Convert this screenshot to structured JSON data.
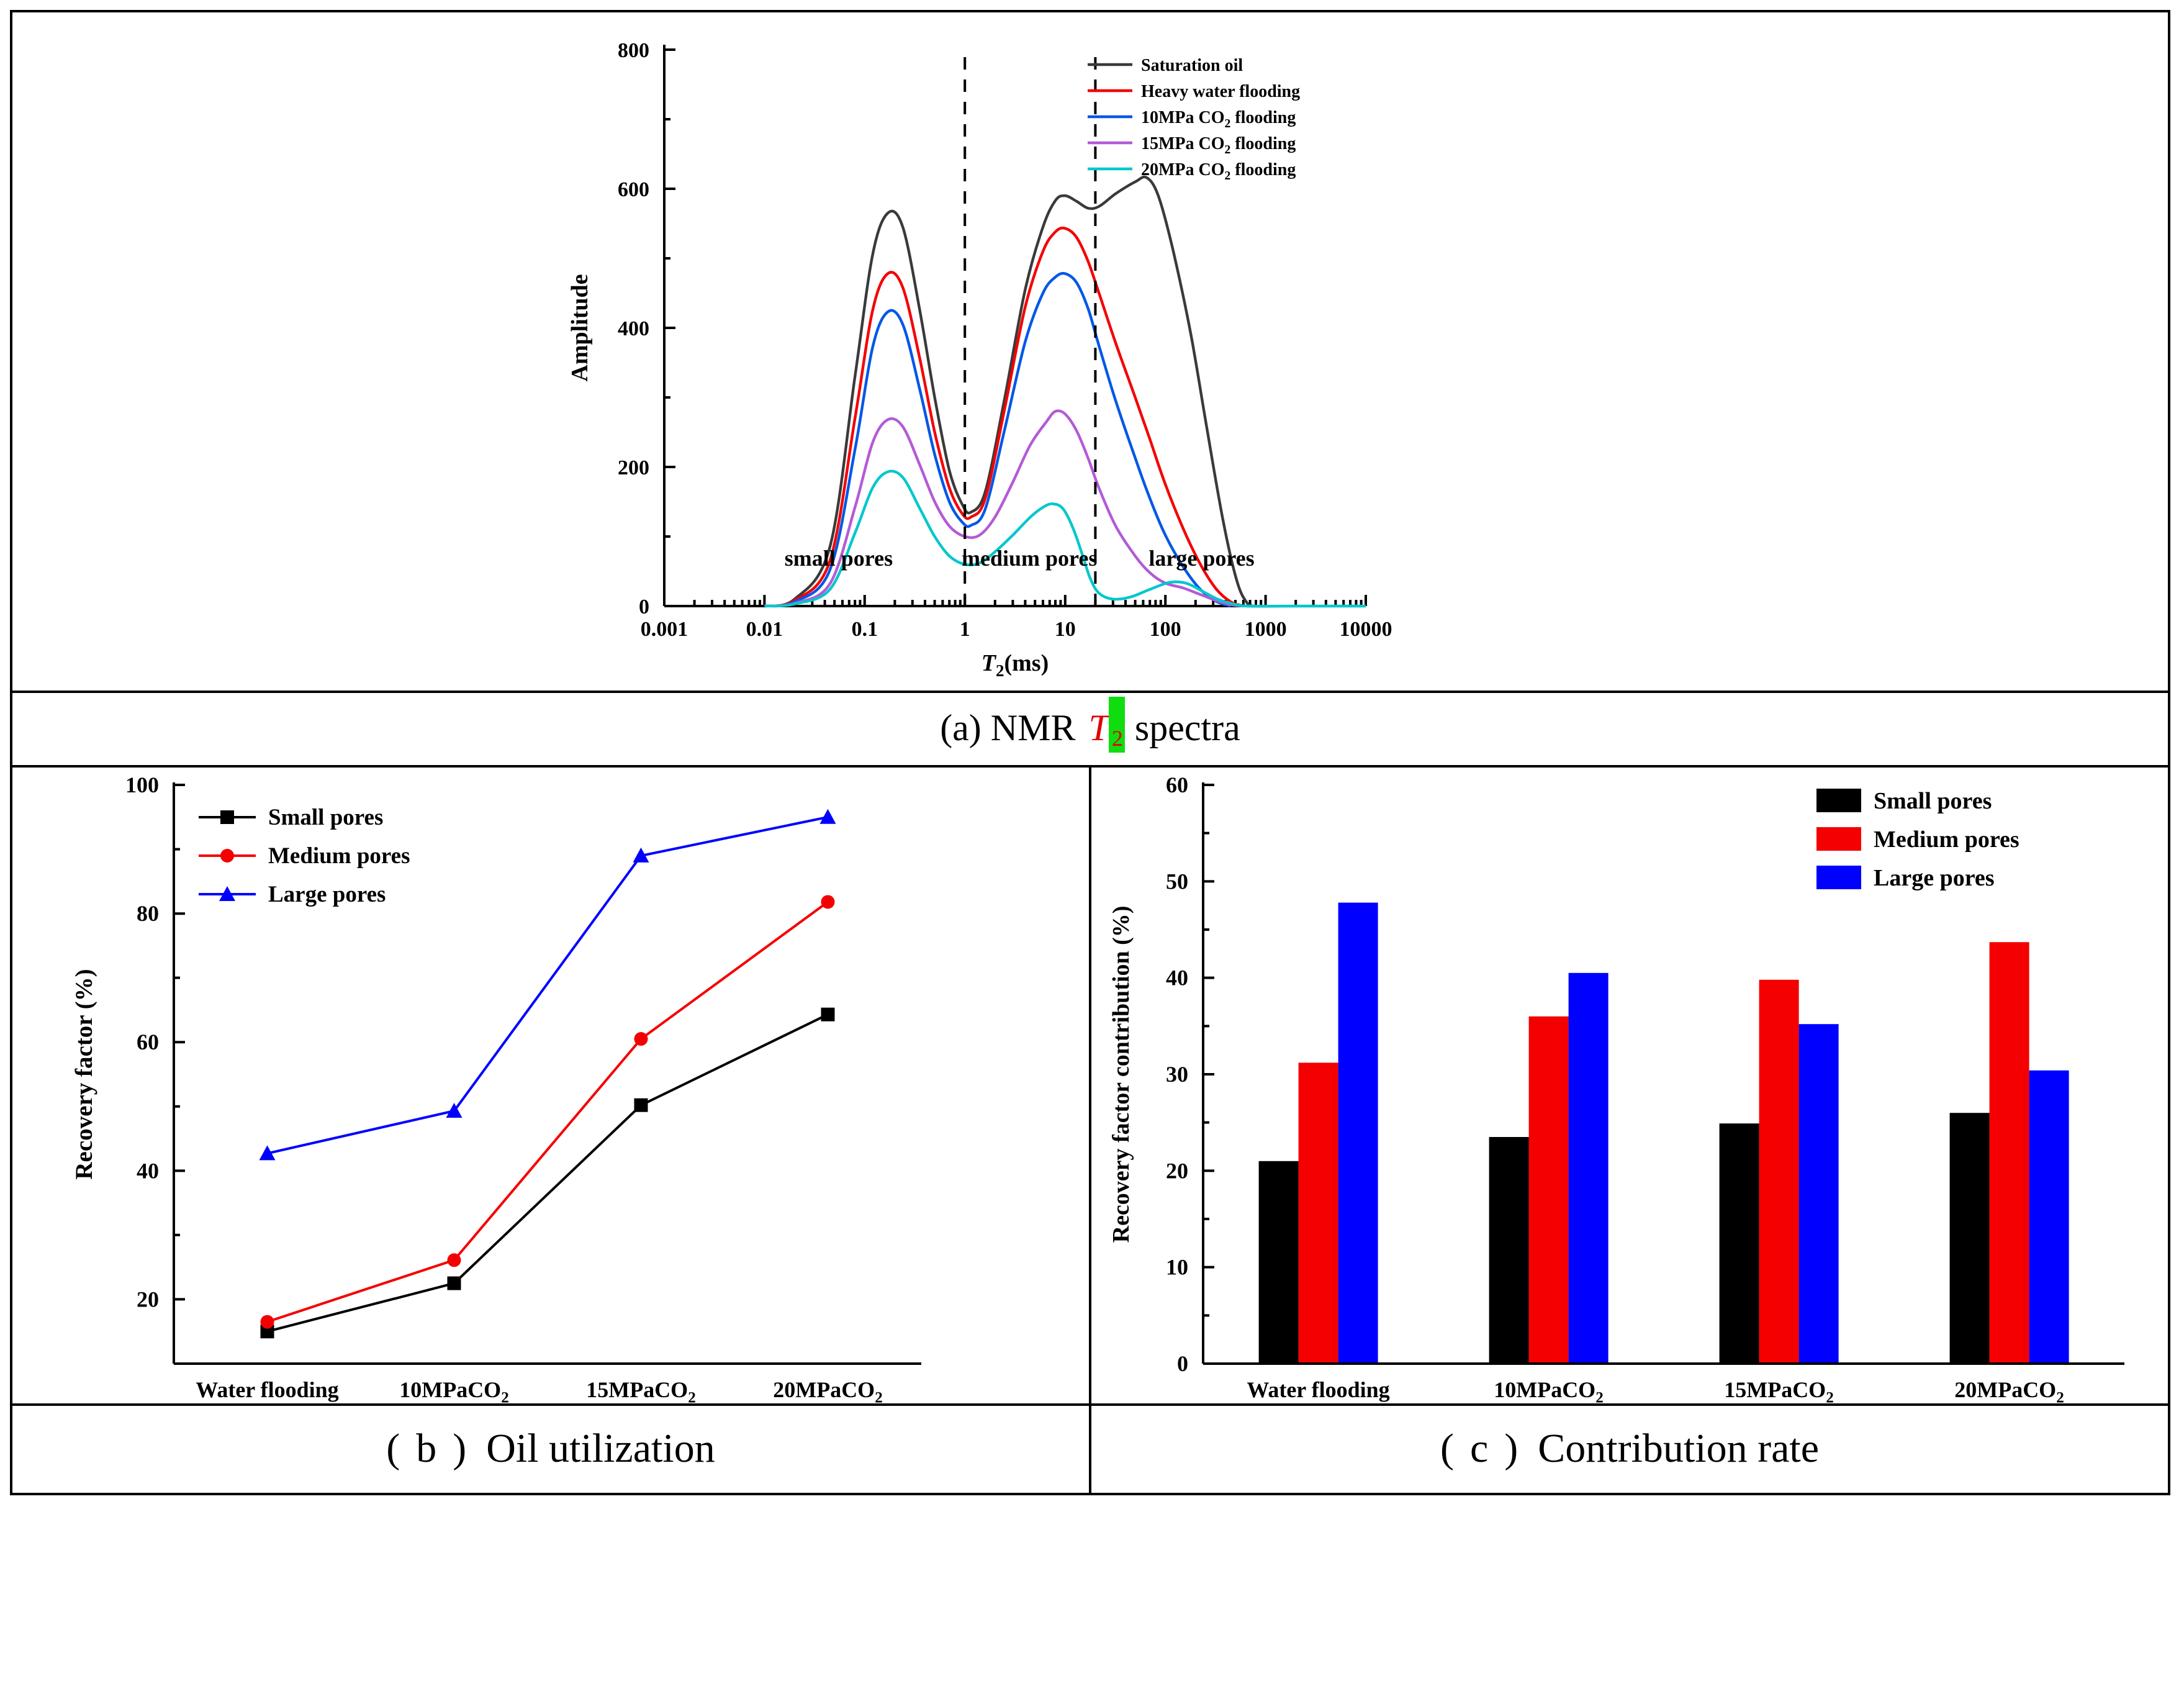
{
  "figure": {
    "background": "#ffffff",
    "border_color": "#000000"
  },
  "colors": {
    "highlight_green": "#10dd10",
    "caption_t_red": "#e00000",
    "small_pores": "#000000",
    "medium_pores": "#f40000",
    "large_pores": "#0000ff"
  },
  "captions": {
    "a": {
      "prefix": "(a) NMR ",
      "t": "T",
      "sub": "2",
      "suffix": " spectra"
    },
    "b": {
      "open": "(",
      "label": "b",
      "close": ")",
      "text": "Oil utilization"
    },
    "c": {
      "open": "(",
      "label": "c",
      "close": ")",
      "text": "Contribution rate"
    }
  },
  "chart_data": [
    {
      "id": "nmr_t2_spectra",
      "type": "line",
      "x_scale": "log",
      "ylabel": "Amplitude",
      "xlabel_parts": {
        "italic": "T",
        "sub": "2",
        "rest": "(ms)"
      },
      "xlim": [
        0.001,
        10000
      ],
      "ylim": [
        0,
        800
      ],
      "x_ticks": [
        0.001,
        0.01,
        0.1,
        1,
        10,
        100,
        1000,
        10000
      ],
      "x_tick_labels": [
        "0.001",
        "0.01",
        "0.1",
        "1",
        "10",
        "100",
        "1000",
        "10000"
      ],
      "y_ticks": [
        0,
        200,
        400,
        600,
        800
      ],
      "dashed_lines_x": [
        1,
        20
      ],
      "region_labels": [
        {
          "text": "small pores",
          "x": 0.055,
          "y": 58
        },
        {
          "text": "medium pores",
          "x": 4.4,
          "y": 58
        },
        {
          "text": "large pores",
          "x": 230,
          "y": 58
        }
      ],
      "series": [
        {
          "name": "Saturation oil",
          "color": "#3a3a3a",
          "points": [
            [
              0.01,
              0
            ],
            [
              0.02,
              10
            ],
            [
              0.045,
              85
            ],
            [
              0.08,
              330
            ],
            [
              0.12,
              505
            ],
            [
              0.17,
              565
            ],
            [
              0.24,
              545
            ],
            [
              0.35,
              430
            ],
            [
              0.5,
              300
            ],
            [
              0.7,
              195
            ],
            [
              0.95,
              145
            ],
            [
              1.15,
              135
            ],
            [
              1.6,
              165
            ],
            [
              2.5,
              300
            ],
            [
              4,
              455
            ],
            [
              6,
              545
            ],
            [
              8,
              583
            ],
            [
              10,
              590
            ],
            [
              13,
              582
            ],
            [
              17,
              572
            ],
            [
              22,
              575
            ],
            [
              32,
              593
            ],
            [
              50,
              610
            ],
            [
              65,
              616
            ],
            [
              85,
              590
            ],
            [
              120,
              510
            ],
            [
              180,
              390
            ],
            [
              260,
              255
            ],
            [
              380,
              120
            ],
            [
              520,
              35
            ],
            [
              650,
              5
            ],
            [
              750,
              0
            ]
          ]
        },
        {
          "name": "Heavy water flooding",
          "color": "#f40000",
          "points": [
            [
              0.01,
              0
            ],
            [
              0.02,
              8
            ],
            [
              0.045,
              65
            ],
            [
              0.08,
              270
            ],
            [
              0.12,
              425
            ],
            [
              0.17,
              478
            ],
            [
              0.24,
              458
            ],
            [
              0.35,
              360
            ],
            [
              0.5,
              250
            ],
            [
              0.7,
              170
            ],
            [
              0.95,
              132
            ],
            [
              1.15,
              128
            ],
            [
              1.6,
              155
            ],
            [
              2.5,
              285
            ],
            [
              4,
              430
            ],
            [
              6,
              510
            ],
            [
              8,
              538
            ],
            [
              10,
              543
            ],
            [
              13,
              530
            ],
            [
              17,
              495
            ],
            [
              22,
              448
            ],
            [
              32,
              378
            ],
            [
              50,
              300
            ],
            [
              70,
              240
            ],
            [
              100,
              175
            ],
            [
              150,
              112
            ],
            [
              220,
              62
            ],
            [
              320,
              25
            ],
            [
              450,
              6
            ],
            [
              600,
              0
            ]
          ]
        },
        {
          "name": "10MPa CO₂ flooding",
          "color": "#0057e7",
          "points": [
            [
              0.01,
              0
            ],
            [
              0.02,
              6
            ],
            [
              0.045,
              52
            ],
            [
              0.08,
              225
            ],
            [
              0.12,
              372
            ],
            [
              0.17,
              423
            ],
            [
              0.24,
              405
            ],
            [
              0.35,
              315
            ],
            [
              0.5,
              218
            ],
            [
              0.7,
              150
            ],
            [
              0.95,
              120
            ],
            [
              1.15,
              116
            ],
            [
              1.6,
              140
            ],
            [
              2.5,
              255
            ],
            [
              4,
              380
            ],
            [
              6,
              450
            ],
            [
              8,
              473
            ],
            [
              10,
              478
            ],
            [
              13,
              465
            ],
            [
              17,
              427
            ],
            [
              22,
              372
            ],
            [
              32,
              295
            ],
            [
              50,
              213
            ],
            [
              70,
              155
            ],
            [
              100,
              102
            ],
            [
              150,
              57
            ],
            [
              220,
              25
            ],
            [
              320,
              7
            ],
            [
              450,
              0
            ]
          ]
        },
        {
          "name": "15MPa CO₂ flooding",
          "color": "#b45ad6",
          "points": [
            [
              0.01,
              0
            ],
            [
              0.02,
              4
            ],
            [
              0.045,
              32
            ],
            [
              0.08,
              142
            ],
            [
              0.12,
              235
            ],
            [
              0.17,
              268
            ],
            [
              0.24,
              258
            ],
            [
              0.35,
              205
            ],
            [
              0.5,
              150
            ],
            [
              0.7,
              115
            ],
            [
              1,
              100
            ],
            [
              1.4,
              102
            ],
            [
              2,
              128
            ],
            [
              3,
              178
            ],
            [
              4.5,
              232
            ],
            [
              6.5,
              265
            ],
            [
              8,
              280
            ],
            [
              10,
              276
            ],
            [
              13,
              252
            ],
            [
              17,
              212
            ],
            [
              22,
              168
            ],
            [
              32,
              115
            ],
            [
              50,
              72
            ],
            [
              70,
              48
            ],
            [
              100,
              33
            ],
            [
              150,
              26
            ],
            [
              220,
              17
            ],
            [
              320,
              8
            ],
            [
              450,
              2
            ],
            [
              600,
              0
            ]
          ]
        },
        {
          "name": "20MPa CO₂ flooding",
          "color": "#00c7cc",
          "points": [
            [
              0.01,
              0
            ],
            [
              0.02,
              3
            ],
            [
              0.045,
              24
            ],
            [
              0.08,
              105
            ],
            [
              0.12,
              170
            ],
            [
              0.17,
              193
            ],
            [
              0.24,
              185
            ],
            [
              0.35,
              142
            ],
            [
              0.5,
              100
            ],
            [
              0.7,
              72
            ],
            [
              1,
              60
            ],
            [
              1.4,
              62
            ],
            [
              2,
              78
            ],
            [
              3,
              102
            ],
            [
              4.5,
              128
            ],
            [
              6,
              142
            ],
            [
              7.5,
              147
            ],
            [
              9.5,
              140
            ],
            [
              12,
              112
            ],
            [
              15,
              72
            ],
            [
              18,
              38
            ],
            [
              22,
              18
            ],
            [
              30,
              10
            ],
            [
              45,
              13
            ],
            [
              70,
              24
            ],
            [
              110,
              34
            ],
            [
              160,
              33
            ],
            [
              230,
              22
            ],
            [
              330,
              10
            ],
            [
              480,
              3
            ],
            [
              650,
              0
            ],
            [
              2000,
              0
            ],
            [
              6000,
              0
            ],
            [
              10000,
              0
            ]
          ]
        }
      ]
    },
    {
      "id": "oil_utilization",
      "type": "line",
      "ylabel": "Recovery factor (%)",
      "categories": [
        "Water flooding",
        "10MPaCO₂",
        "15MPaCO₂",
        "20MPaCO₂"
      ],
      "ylim": [
        10,
        100
      ],
      "y_ticks": [
        20,
        40,
        60,
        80,
        100
      ],
      "y_minor_step": 10,
      "series": [
        {
          "name": "Small pores",
          "color": "#000000",
          "marker": "square",
          "values": [
            15.0,
            22.5,
            50.2,
            64.3
          ]
        },
        {
          "name": "Medium pores",
          "color": "#f40000",
          "marker": "circle",
          "values": [
            16.5,
            26.1,
            60.5,
            81.8
          ]
        },
        {
          "name": "Large pores",
          "color": "#0000ff",
          "marker": "triangle",
          "values": [
            42.7,
            49.3,
            89.0,
            95.0
          ]
        }
      ]
    },
    {
      "id": "contribution_rate",
      "type": "bar",
      "ylabel": "Recovery factor contribution (%)",
      "categories": [
        "Water flooding",
        "10MPaCO₂",
        "15MPaCO₂",
        "20MPaCO₂"
      ],
      "ylim": [
        0,
        60
      ],
      "y_ticks": [
        0,
        10,
        20,
        30,
        40,
        50,
        60
      ],
      "y_minor_step": 5,
      "series": [
        {
          "name": "Small pores",
          "color": "#000000",
          "values": [
            21.0,
            23.5,
            24.9,
            26.0
          ]
        },
        {
          "name": "Medium pores",
          "color": "#f40000",
          "values": [
            31.2,
            36.0,
            39.8,
            43.7
          ]
        },
        {
          "name": "Large pores",
          "color": "#0000ff",
          "values": [
            47.8,
            40.5,
            35.2,
            30.4
          ]
        }
      ]
    }
  ]
}
